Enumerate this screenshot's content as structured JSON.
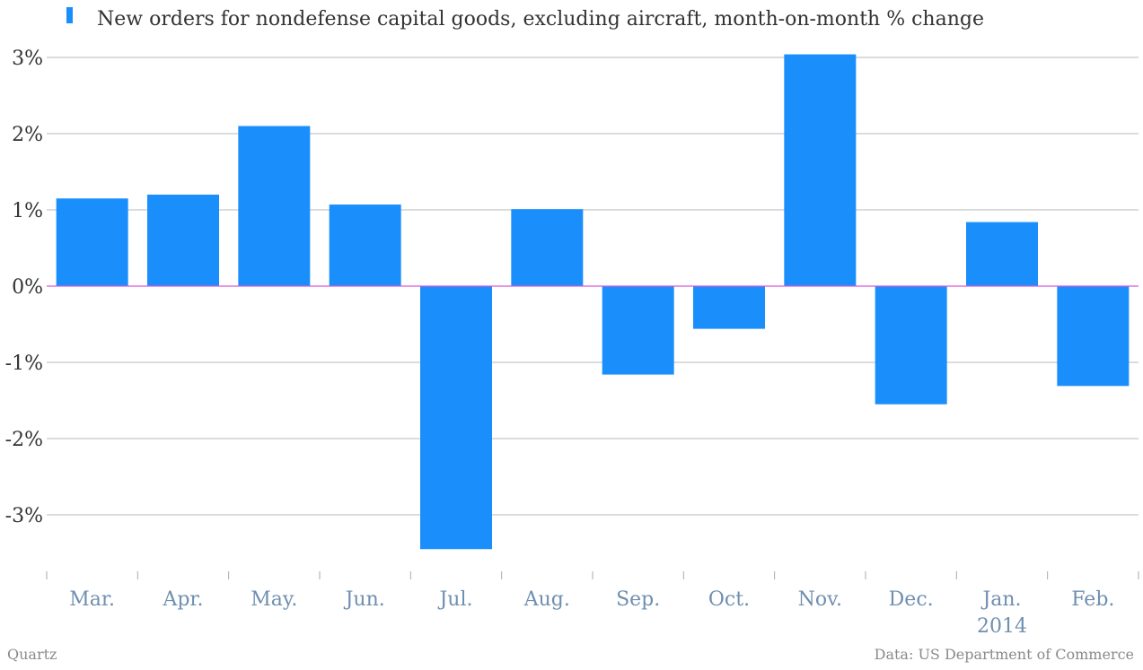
{
  "chart_data": {
    "type": "bar",
    "categories": [
      "Mar.",
      "Apr.",
      "May.",
      "Jun.",
      "Jul.",
      "Aug.",
      "Sep.",
      "Oct.",
      "Nov.",
      "Dec.",
      "Jan.",
      "Feb."
    ],
    "year_label": {
      "category": "Jan.",
      "text": "2014"
    },
    "series": [
      {
        "name": "New orders for nondefense capital goods, excluding aircraft, month-on-month % change",
        "values": [
          1.15,
          1.2,
          2.1,
          1.07,
          -3.45,
          1.01,
          -1.16,
          -0.56,
          3.04,
          -1.55,
          0.84,
          -1.31
        ]
      }
    ],
    "ylim": [
      -3.7,
      3.2
    ],
    "yticks": [
      3,
      2,
      1,
      0,
      -1,
      -2,
      -3
    ],
    "ytick_labels": [
      "3%",
      "2%",
      "1%",
      "0%",
      "-1%",
      "-2%",
      "-3%"
    ],
    "grid": true,
    "legend": "top-left"
  },
  "colors": {
    "bar": "#1a8ffb",
    "zero_line": "#d65bd6",
    "grid": "#b8b8b8",
    "x_label": "#6f8fb0",
    "y_label": "#333333"
  },
  "footer": {
    "brand": "Quartz",
    "source": "Data: US Department of Commerce"
  }
}
